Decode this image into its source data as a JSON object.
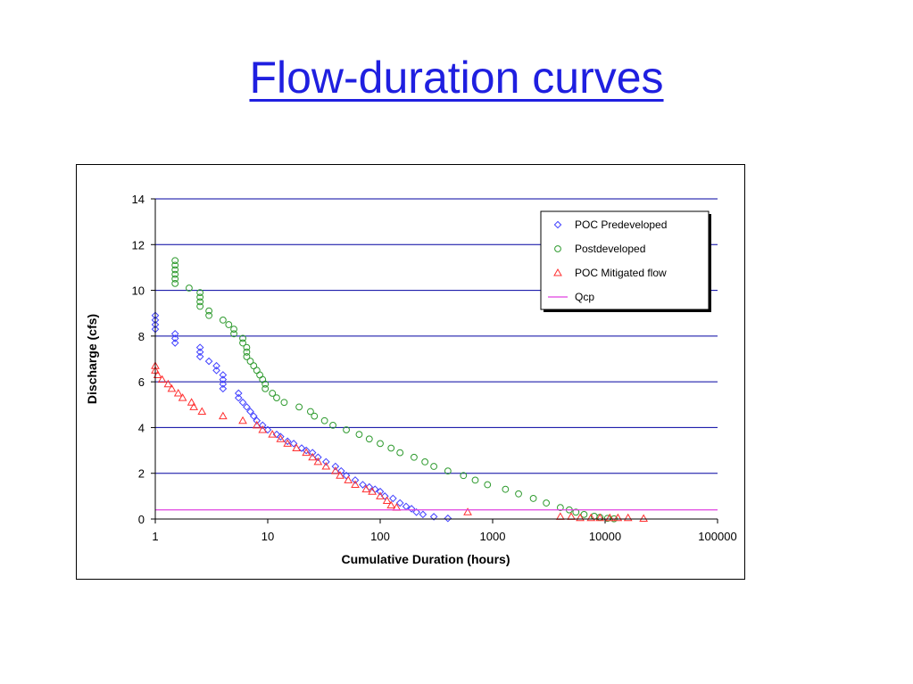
{
  "slide": {
    "title": "Flow-duration curves"
  },
  "chart_data": {
    "type": "scatter",
    "xlabel": "Cumulative Duration (hours)",
    "ylabel": "Discharge (cfs)",
    "x_scale": "log",
    "xlim": [
      1,
      100000
    ],
    "ylim": [
      0,
      14
    ],
    "x_ticks": [
      "1",
      "10",
      "100",
      "1000",
      "10000",
      "100000"
    ],
    "y_ticks": [
      "0",
      "2",
      "4",
      "6",
      "8",
      "10",
      "12",
      "14"
    ],
    "grid": "horizontal",
    "legend_position": "top-right",
    "colors": {
      "grid": "#0000a0",
      "predeveloped": "#4040ff",
      "postdeveloped": "#2e9a2e",
      "mitigated": "#ff3030",
      "qcp": "#e040e0"
    },
    "series": [
      {
        "name": "POC Predeveloped",
        "marker": "diamond",
        "color": "#4040ff",
        "points": [
          [
            1,
            8.9
          ],
          [
            1,
            8.7
          ],
          [
            1,
            8.5
          ],
          [
            1,
            8.3
          ],
          [
            1.5,
            8.1
          ],
          [
            1.5,
            7.9
          ],
          [
            1.5,
            7.7
          ],
          [
            2.5,
            7.5
          ],
          [
            2.5,
            7.3
          ],
          [
            2.5,
            7.1
          ],
          [
            3,
            6.9
          ],
          [
            3.5,
            6.7
          ],
          [
            3.5,
            6.5
          ],
          [
            4,
            6.3
          ],
          [
            4,
            6.1
          ],
          [
            4,
            5.9
          ],
          [
            4,
            5.7
          ],
          [
            5.5,
            5.5
          ],
          [
            5.5,
            5.3
          ],
          [
            6,
            5.1
          ],
          [
            6.5,
            4.9
          ],
          [
            7,
            4.7
          ],
          [
            7.5,
            4.5
          ],
          [
            8,
            4.3
          ],
          [
            9,
            4.1
          ],
          [
            10,
            3.9
          ],
          [
            12,
            3.7
          ],
          [
            13,
            3.6
          ],
          [
            15,
            3.4
          ],
          [
            17,
            3.3
          ],
          [
            20,
            3.1
          ],
          [
            22,
            3.0
          ],
          [
            25,
            2.9
          ],
          [
            28,
            2.7
          ],
          [
            33,
            2.5
          ],
          [
            40,
            2.3
          ],
          [
            45,
            2.1
          ],
          [
            50,
            1.9
          ],
          [
            60,
            1.7
          ],
          [
            70,
            1.5
          ],
          [
            80,
            1.4
          ],
          [
            90,
            1.3
          ],
          [
            100,
            1.2
          ],
          [
            110,
            1.0
          ],
          [
            130,
            0.9
          ],
          [
            150,
            0.7
          ],
          [
            170,
            0.55
          ],
          [
            190,
            0.45
          ],
          [
            210,
            0.3
          ],
          [
            240,
            0.2
          ],
          [
            300,
            0.1
          ],
          [
            400,
            0.03
          ]
        ]
      },
      {
        "name": "Postdeveloped",
        "marker": "circle",
        "color": "#2e9a2e",
        "points": [
          [
            1.5,
            11.3
          ],
          [
            1.5,
            11.1
          ],
          [
            1.5,
            10.9
          ],
          [
            1.5,
            10.7
          ],
          [
            1.5,
            10.5
          ],
          [
            1.5,
            10.3
          ],
          [
            2,
            10.1
          ],
          [
            2.5,
            9.9
          ],
          [
            2.5,
            9.7
          ],
          [
            2.5,
            9.5
          ],
          [
            2.5,
            9.3
          ],
          [
            3,
            9.1
          ],
          [
            3,
            8.9
          ],
          [
            4,
            8.7
          ],
          [
            4.5,
            8.5
          ],
          [
            5,
            8.3
          ],
          [
            5,
            8.1
          ],
          [
            6,
            7.9
          ],
          [
            6,
            7.7
          ],
          [
            6.5,
            7.5
          ],
          [
            6.5,
            7.3
          ],
          [
            6.5,
            7.1
          ],
          [
            7,
            6.9
          ],
          [
            7.5,
            6.7
          ],
          [
            8,
            6.5
          ],
          [
            8.5,
            6.3
          ],
          [
            9,
            6.1
          ],
          [
            9.5,
            5.9
          ],
          [
            9.5,
            5.7
          ],
          [
            11,
            5.5
          ],
          [
            12,
            5.3
          ],
          [
            14,
            5.1
          ],
          [
            19,
            4.9
          ],
          [
            24,
            4.7
          ],
          [
            26,
            4.5
          ],
          [
            32,
            4.3
          ],
          [
            38,
            4.1
          ],
          [
            50,
            3.9
          ],
          [
            65,
            3.7
          ],
          [
            80,
            3.5
          ],
          [
            100,
            3.3
          ],
          [
            125,
            3.1
          ],
          [
            150,
            2.9
          ],
          [
            200,
            2.7
          ],
          [
            250,
            2.5
          ],
          [
            300,
            2.3
          ],
          [
            400,
            2.1
          ],
          [
            550,
            1.9
          ],
          [
            700,
            1.7
          ],
          [
            900,
            1.5
          ],
          [
            1300,
            1.3
          ],
          [
            1700,
            1.1
          ],
          [
            2300,
            0.9
          ],
          [
            3000,
            0.7
          ],
          [
            4000,
            0.5
          ],
          [
            4800,
            0.4
          ],
          [
            5500,
            0.3
          ],
          [
            6500,
            0.2
          ],
          [
            8000,
            0.12
          ],
          [
            9000,
            0.07
          ],
          [
            10500,
            0.03
          ],
          [
            12000,
            0.01
          ]
        ]
      },
      {
        "name": "POC Mitigated flow",
        "marker": "triangle",
        "color": "#ff3030",
        "points": [
          [
            1,
            6.7
          ],
          [
            1,
            6.5
          ],
          [
            1.05,
            6.3
          ],
          [
            1.15,
            6.1
          ],
          [
            1.3,
            5.9
          ],
          [
            1.4,
            5.7
          ],
          [
            1.6,
            5.5
          ],
          [
            1.75,
            5.3
          ],
          [
            2.1,
            5.1
          ],
          [
            2.2,
            4.9
          ],
          [
            2.6,
            4.7
          ],
          [
            4,
            4.5
          ],
          [
            6,
            4.3
          ],
          [
            8,
            4.1
          ],
          [
            9,
            3.9
          ],
          [
            11,
            3.7
          ],
          [
            13,
            3.5
          ],
          [
            15,
            3.3
          ],
          [
            18,
            3.1
          ],
          [
            22,
            2.9
          ],
          [
            25,
            2.7
          ],
          [
            28,
            2.5
          ],
          [
            33,
            2.3
          ],
          [
            40,
            2.1
          ],
          [
            44,
            1.9
          ],
          [
            52,
            1.7
          ],
          [
            60,
            1.5
          ],
          [
            75,
            1.3
          ],
          [
            85,
            1.2
          ],
          [
            100,
            1.0
          ],
          [
            115,
            0.8
          ],
          [
            125,
            0.6
          ],
          [
            140,
            0.5
          ],
          [
            600,
            0.3
          ],
          [
            4000,
            0.1
          ],
          [
            5000,
            0.1
          ],
          [
            6000,
            0.05
          ],
          [
            7500,
            0.05
          ],
          [
            9000,
            0.05
          ],
          [
            11000,
            0.05
          ],
          [
            13000,
            0.05
          ],
          [
            16000,
            0.05
          ],
          [
            22000,
            0.02
          ]
        ]
      },
      {
        "name": "Qcp",
        "marker": "line",
        "color": "#e040e0",
        "y": 0.4
      }
    ]
  }
}
